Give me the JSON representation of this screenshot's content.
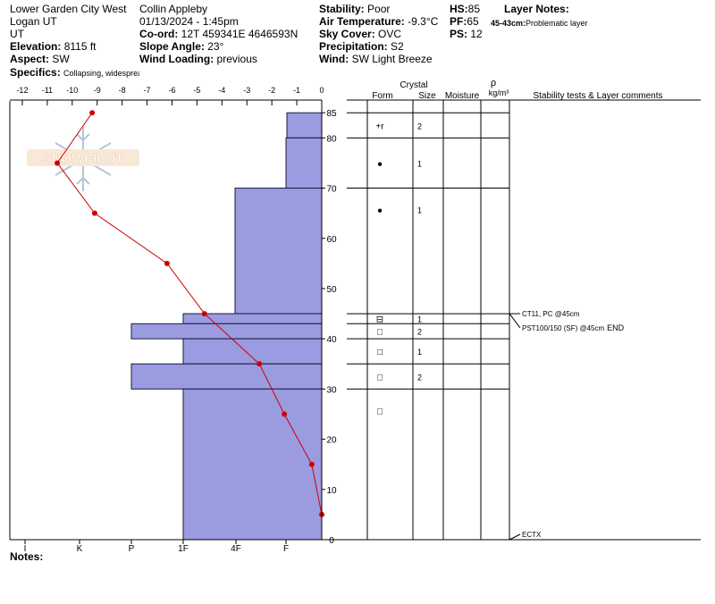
{
  "header": {
    "location": "Lower Garden City West",
    "region": "Logan UT",
    "state": "UT",
    "elevation_label": "Elevation:",
    "elevation": "8115 ft",
    "aspect_label": "Aspect:",
    "aspect": "SW",
    "specifics_label": "Specifics:",
    "specifics": "Collapsing, widespread",
    "observer": "Collin Appleby",
    "datetime": "01/13/2024 - 1:45pm",
    "coord_label": "Co-ord:",
    "coord": "12T 459341E 4646593N",
    "slope_label": "Slope Angle:",
    "slope": "23°",
    "wind_loading_label": "Wind Loading:",
    "wind_loading": "previous",
    "stability_label": "Stability:",
    "stability": "Poor",
    "air_temp_label": "Air Temperature:",
    "air_temp": "-9.3°C",
    "sky_label": "Sky Cover:",
    "sky": "OVC",
    "precip_label": "Precipitation:",
    "precip": "S2",
    "wind_label": "Wind:",
    "wind": "SW Light Breeze",
    "hs_label": "HS:",
    "hs": "85",
    "pf_label": "PF:",
    "pf": "65",
    "ps_label": "PS:",
    "ps": "12",
    "layer_notes_title": "Layer Notes:",
    "layer_note": "45-43cm:Problematic layer",
    "notes_label": "Notes:"
  },
  "logo_text": "SNOWPILOT",
  "colors": {
    "hardness_fill": "#9b9be0",
    "hardness_stroke": "#1a1a40",
    "temp_line": "#cc0000",
    "temp_point": "#cc0000"
  },
  "chart_data": {
    "type": "snow-profile",
    "temperature_axis": {
      "ticks": [
        "-12",
        "-11",
        "-10",
        "-9",
        "-8",
        "-7",
        "-6",
        "-5",
        "-4",
        "-3",
        "-2",
        "-1",
        "0"
      ],
      "tick_labels": [
        "-12",
        "-10",
        "-8",
        "-6",
        "-4",
        "-2",
        "0"
      ],
      "range": [
        -12.5,
        0
      ]
    },
    "hardness_axis": {
      "labels": [
        "I",
        "K",
        "P",
        "1F",
        "4F",
        "F"
      ]
    },
    "height_axis": {
      "range": [
        0,
        87
      ],
      "tick_labels": [
        "0",
        "10",
        "20",
        "30",
        "40",
        "50",
        "60",
        "70",
        "80",
        "85"
      ]
    },
    "temperature_profile": [
      {
        "height": 85,
        "temp": -9.2
      },
      {
        "height": 75,
        "temp": -10.6
      },
      {
        "height": 65,
        "temp": -9.1
      },
      {
        "height": 55,
        "temp": -6.2
      },
      {
        "height": 45,
        "temp": -4.7
      },
      {
        "height": 35,
        "temp": -2.5
      },
      {
        "height": 25,
        "temp": -1.5
      },
      {
        "height": 15,
        "temp": -0.4
      },
      {
        "height": 5,
        "temp": 0
      }
    ],
    "hardness_profile": [
      {
        "top": 85,
        "bottom": 80,
        "hardness": "F-"
      },
      {
        "top": 80,
        "bottom": 70,
        "hardness": "F"
      },
      {
        "top": 70,
        "bottom": 45,
        "hardness": "4F-"
      },
      {
        "top": 45,
        "bottom": 43,
        "hardness": "1F"
      },
      {
        "top": 43,
        "bottom": 40,
        "hardness": "P"
      },
      {
        "top": 40,
        "bottom": 35,
        "hardness": "1F"
      },
      {
        "top": 35,
        "bottom": 30,
        "hardness": "P"
      },
      {
        "top": 30,
        "bottom": 0,
        "hardness": "1F"
      }
    ],
    "columns": {
      "crystal": "Crystal",
      "form": "Form",
      "size": "Size",
      "moisture": "Moisture",
      "rho": "ρ",
      "density_unit": "kg/m³",
      "comments": "Stability tests & Layer comments"
    },
    "layers": [
      {
        "top": 85,
        "bottom": 80,
        "form": "+r",
        "size": "2"
      },
      {
        "top": 80,
        "bottom": 70,
        "form": "●",
        "size": "1"
      },
      {
        "top": 70,
        "bottom": 45,
        "form": "●",
        "size": "1"
      },
      {
        "top": 45,
        "bottom": 43,
        "form": "⊟",
        "size": "1"
      },
      {
        "top": 43,
        "bottom": 40,
        "form": "□",
        "size": "2"
      },
      {
        "top": 40,
        "bottom": 35,
        "form": "□",
        "size": "1"
      },
      {
        "top": 35,
        "bottom": 30,
        "form": "□",
        "size": "2"
      },
      {
        "top": 30,
        "bottom": 0,
        "form": "□",
        "size": ""
      }
    ],
    "stability_tests": [
      {
        "height": 45,
        "text": "CT11, PC @45cm"
      },
      {
        "height": 45,
        "text": "PST100/150 (SF) @45cm",
        "suffix": "END"
      },
      {
        "height": 0,
        "text": "ECTX"
      }
    ]
  }
}
